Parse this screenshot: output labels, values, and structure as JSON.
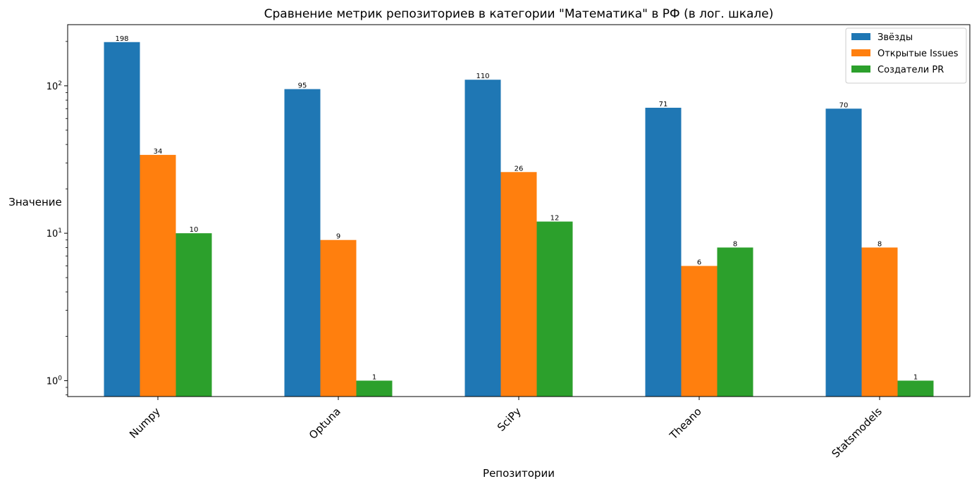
{
  "chart_data": {
    "type": "bar",
    "title": "Сравнение метрик репозиториев в категории \"Математика\" в РФ (в лог. шкале)",
    "xlabel": "Репозитории",
    "ylabel": "Значение",
    "yscale": "log",
    "ylim": [
      0.78,
      260
    ],
    "yticks": [
      {
        "value": 1,
        "base": "10",
        "exp": "0"
      },
      {
        "value": 10,
        "base": "10",
        "exp": "1"
      },
      {
        "value": 100,
        "base": "10",
        "exp": "2"
      }
    ],
    "categories": [
      "Numpy",
      "Optuna",
      "SciPy",
      "Theano",
      "Statsmodels"
    ],
    "series": [
      {
        "name": "Звёзды",
        "color": "#1f77b4",
        "values": [
          198,
          95,
          110,
          71,
          70
        ]
      },
      {
        "name": "Открытые Issues",
        "color": "#ff7f0e",
        "values": [
          34,
          9,
          26,
          6,
          8
        ]
      },
      {
        "name": "Создатели PR",
        "color": "#2ca02c",
        "values": [
          10,
          1,
          12,
          8,
          1
        ]
      }
    ],
    "grid": false,
    "legend_position": "top-right"
  }
}
